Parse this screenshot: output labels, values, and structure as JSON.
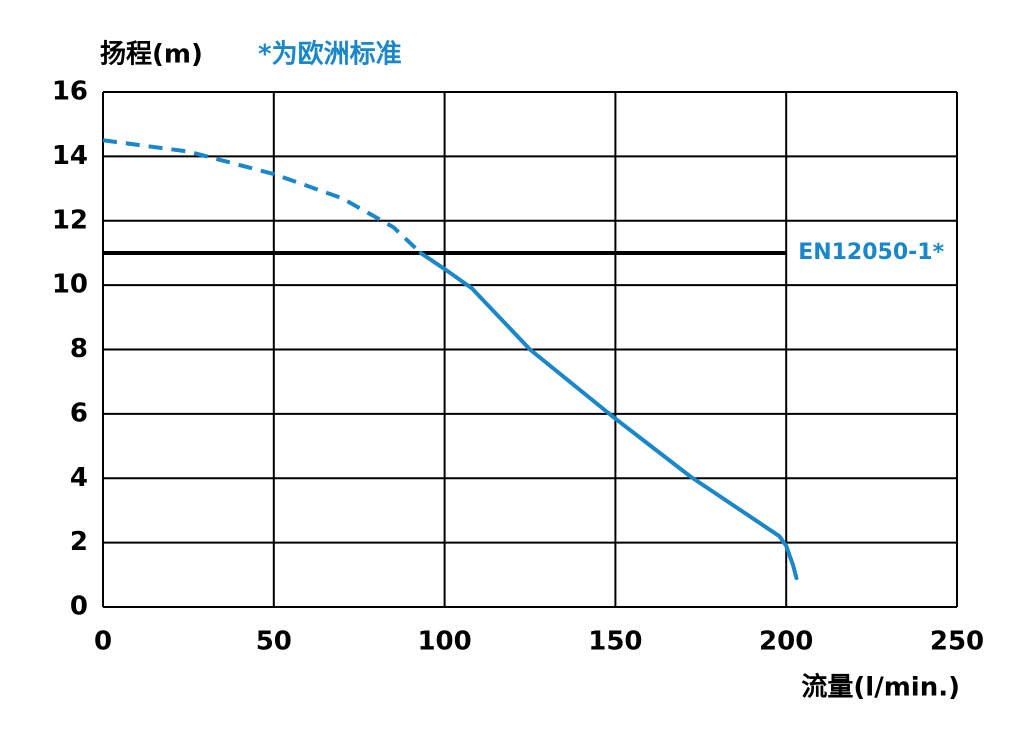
{
  "chart_data": {
    "type": "line",
    "ylabel": "扬程(m)",
    "note": "*为欧洲标准",
    "xlabel": "流量(l/min.)",
    "xlim": [
      0,
      250
    ],
    "xticks": [
      0,
      50,
      100,
      150,
      200,
      250
    ],
    "ylim": [
      0,
      16
    ],
    "yticks": [
      0,
      2,
      4,
      6,
      8,
      10,
      12,
      14,
      16
    ],
    "grid": true,
    "series": [
      {
        "color": "#1a87c8",
        "style": "dashed",
        "x": [
          0,
          25,
          50,
          70,
          85,
          93
        ],
        "values": [
          14.5,
          14.15,
          13.45,
          12.7,
          11.8,
          11.0
        ]
      },
      {
        "color": "#1a87c8",
        "style": "solid",
        "x": [
          93,
          100,
          108,
          125,
          150,
          172,
          198,
          200,
          202,
          203
        ],
        "values": [
          11.0,
          10.5,
          9.9,
          8.0,
          5.85,
          4.05,
          2.2,
          1.9,
          1.3,
          0.9
        ]
      }
    ],
    "reference_line": {
      "y": 11,
      "x_end": 200,
      "label": "EN12050-1*",
      "color": "#000000",
      "label_color": "#1a87c8"
    }
  }
}
